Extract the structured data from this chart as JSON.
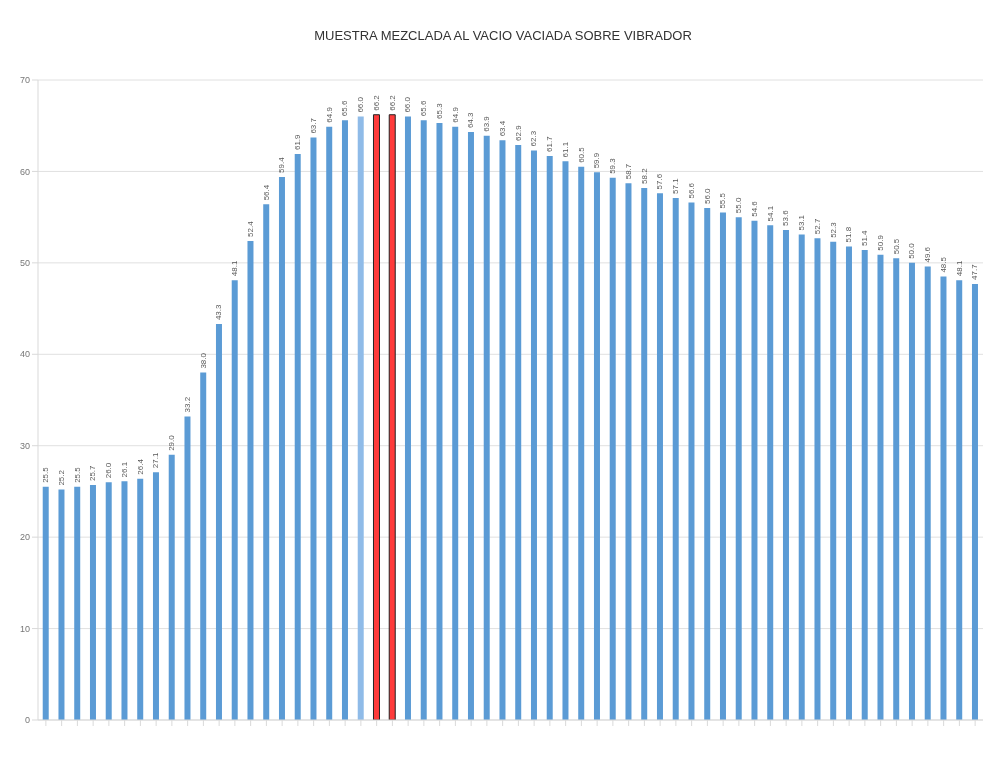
{
  "chart_data": {
    "type": "bar",
    "title": "MUESTRA MEZCLADA AL VACIO VACIADA SOBRE VIBRADOR",
    "categories": [
      null,
      null,
      null,
      null,
      null,
      null,
      null,
      null,
      null,
      null,
      null,
      null,
      null,
      null,
      null,
      null,
      null,
      null,
      null,
      null,
      null,
      null,
      null,
      null,
      null,
      null,
      null,
      null,
      null,
      null,
      null,
      null,
      null,
      null,
      null,
      null,
      null,
      null,
      null,
      null,
      null,
      null,
      null,
      null,
      null,
      null,
      null,
      null,
      null,
      null,
      null,
      null,
      null,
      null,
      null,
      null,
      null,
      null,
      null,
      null
    ],
    "values": [
      25.5,
      25.2,
      25.5,
      25.7,
      26.0,
      26.1,
      26.4,
      27.1,
      29.0,
      33.2,
      38.0,
      43.3,
      48.1,
      52.4,
      56.4,
      59.4,
      61.9,
      63.7,
      64.9,
      65.6,
      66.0,
      66.2,
      66.2,
      66.0,
      65.6,
      65.3,
      64.9,
      64.3,
      63.9,
      63.4,
      62.9,
      62.3,
      61.7,
      61.1,
      60.5,
      59.9,
      59.3,
      58.7,
      58.2,
      57.6,
      57.1,
      56.6,
      56.0,
      55.5,
      55.0,
      54.6,
      54.1,
      53.6,
      53.1,
      52.7,
      52.3,
      51.8,
      51.4,
      50.9,
      50.5,
      50.0,
      49.6,
      48.5,
      48.1,
      47.7
    ],
    "colors": [
      "#5b9bd5",
      "#5b9bd5",
      "#5b9bd5",
      "#5b9bd5",
      "#5b9bd5",
      "#5b9bd5",
      "#5b9bd5",
      "#5b9bd5",
      "#5b9bd5",
      "#5b9bd5",
      "#5b9bd5",
      "#5b9bd5",
      "#5b9bd5",
      "#5b9bd5",
      "#5b9bd5",
      "#5b9bd5",
      "#5b9bd5",
      "#5b9bd5",
      "#5b9bd5",
      "#5b9bd5",
      "#8fbbe8",
      "#ff3b3b",
      "#ff3b3b",
      "#5b9bd5",
      "#5b9bd5",
      "#5b9bd5",
      "#5b9bd5",
      "#5b9bd5",
      "#5b9bd5",
      "#5b9bd5",
      "#5b9bd5",
      "#5b9bd5",
      "#5b9bd5",
      "#5b9bd5",
      "#5b9bd5",
      "#5b9bd5",
      "#5b9bd5",
      "#5b9bd5",
      "#5b9bd5",
      "#5b9bd5",
      "#5b9bd5",
      "#5b9bd5",
      "#5b9bd5",
      "#5b9bd5",
      "#5b9bd5",
      "#5b9bd5",
      "#5b9bd5",
      "#5b9bd5",
      "#5b9bd5",
      "#5b9bd5",
      "#5b9bd5",
      "#5b9bd5",
      "#5b9bd5",
      "#5b9bd5",
      "#5b9bd5",
      "#5b9bd5",
      "#5b9bd5",
      "#5b9bd5",
      "#5b9bd5",
      "#5b9bd5"
    ],
    "value_labels": [
      "25.5",
      "25.2",
      "25.5",
      "25.7",
      "26.0",
      "26.1",
      "26.4",
      "27.1",
      "29.0",
      "33.2",
      "38.0",
      "43.3",
      "48.1",
      "52.4",
      "56.4",
      "59.4",
      "61.9",
      "63.7",
      "64.9",
      "65.6",
      "66.0",
      "66.2",
      "66.2",
      "66.0",
      "65.6",
      "65.3",
      "64.9",
      "64.3",
      "63.9",
      "63.4",
      "62.9",
      "62.3",
      "61.7",
      "61.1",
      "60.5",
      "59.9",
      "59.3",
      "58.7",
      "58.2",
      "57.6",
      "57.1",
      "56.6",
      "56.0",
      "55.5",
      "55.0",
      "54.6",
      "54.1",
      "53.6",
      "53.1",
      "52.7",
      "52.3",
      "51.8",
      "51.4",
      "50.9",
      "50.5",
      "50.0",
      "49.6",
      "48.5",
      "48.1",
      "47.7"
    ],
    "ylim": [
      0,
      70
    ],
    "yticks": [
      0,
      10,
      20,
      30,
      40,
      50,
      60,
      70
    ],
    "grid": "y"
  }
}
